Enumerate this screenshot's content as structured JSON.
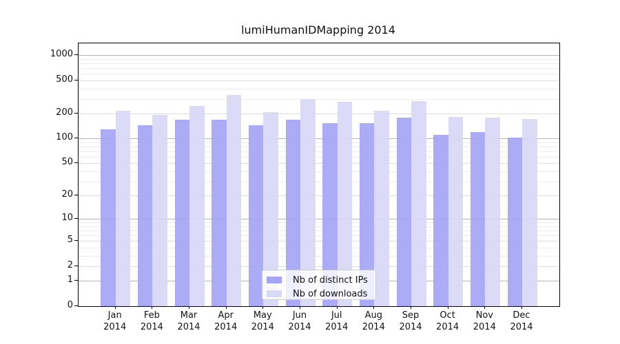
{
  "chart_data": {
    "type": "bar",
    "title": "lumiHumanIDMapping 2014",
    "categories": [
      "Jan",
      "Feb",
      "Mar",
      "Apr",
      "May",
      "Jun",
      "Jul",
      "Aug",
      "Sep",
      "Oct",
      "Nov",
      "Dec"
    ],
    "category_year": "2014",
    "series": [
      {
        "name": "Nb of distinct IPs",
        "color": "#a5a5f5",
        "values": [
          128,
          145,
          170,
          170,
          145,
          170,
          153,
          153,
          178,
          110,
          120,
          102
        ]
      },
      {
        "name": "Nb of downloads",
        "color": "#d8d8f8",
        "values": [
          216,
          194,
          245,
          332,
          208,
          300,
          278,
          216,
          282,
          181,
          178,
          172
        ]
      }
    ],
    "xlabel": "",
    "ylabel": "",
    "yscale": "log1p",
    "yticks": [
      0,
      1,
      2,
      5,
      10,
      20,
      50,
      100,
      200,
      500,
      1000
    ],
    "yminor_ticks": [
      3,
      4,
      6,
      7,
      8,
      9,
      30,
      40,
      60,
      70,
      80,
      90,
      300,
      400,
      600,
      700,
      800,
      900
    ],
    "ylim": [
      0,
      1390
    ],
    "grid": true,
    "legend_position": "bottom-center",
    "colors": {
      "grid_major": "#b3b3b3",
      "grid_labeled": "#dcdcdc",
      "grid_minor": "#ececec",
      "axis": "#000000",
      "background": "#ffffff",
      "text": "#111111"
    }
  }
}
